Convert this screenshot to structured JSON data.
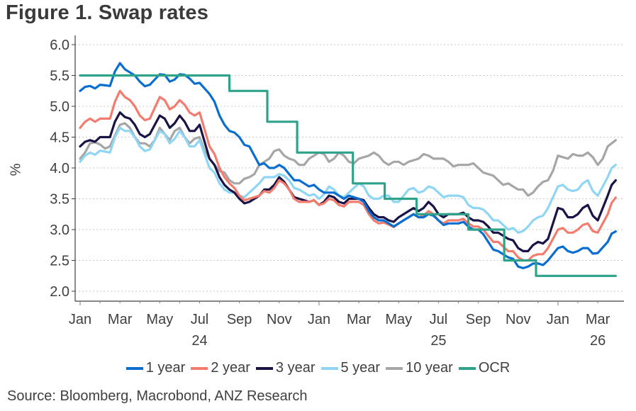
{
  "chart_data": {
    "type": "line",
    "title": "Figure 1. Swap rates",
    "xlabel": "",
    "ylabel": "%",
    "ylim": [
      2.0,
      6.0
    ],
    "yticks": [
      "6.0",
      "5.5",
      "5.0",
      "4.5",
      "4.0",
      "3.5",
      "3.0",
      "2.5",
      "2.0"
    ],
    "ytick_values": [
      6.0,
      5.5,
      5.0,
      4.5,
      4.0,
      3.5,
      3.0,
      2.5,
      2.0
    ],
    "xticks": [
      {
        "label": "Jan",
        "month": 0
      },
      {
        "label": "Mar",
        "month": 2
      },
      {
        "label": "May",
        "month": 4
      },
      {
        "label": "Jul",
        "month": 6
      },
      {
        "label": "Sep",
        "month": 8
      },
      {
        "label": "Nov",
        "month": 10
      },
      {
        "label": "Jan",
        "month": 12
      },
      {
        "label": "Mar",
        "month": 14
      },
      {
        "label": "May",
        "month": 16
      },
      {
        "label": "Jul",
        "month": 18
      },
      {
        "label": "Sep",
        "month": 20
      },
      {
        "label": "Nov",
        "month": 22
      },
      {
        "label": "Jan",
        "month": 24
      },
      {
        "label": "Mar",
        "month": 26
      }
    ],
    "year_labels": [
      {
        "label": "24",
        "month": 6
      },
      {
        "label": "25",
        "month": 18
      },
      {
        "label": "26",
        "month": 26
      }
    ],
    "x_range_months": [
      0,
      26.9
    ],
    "x_start": "Jan 2024",
    "grid": "horizontal dotted",
    "legend_position": "bottom",
    "x": [
      0,
      0.5,
      1,
      1.5,
      2,
      2.5,
      3,
      3.5,
      4,
      4.5,
      5,
      5.5,
      6,
      6.5,
      7,
      7.5,
      8,
      8.5,
      9,
      9.5,
      10,
      10.5,
      11,
      11.5,
      12,
      12.5,
      13,
      13.5,
      14,
      14.5,
      15,
      15.5,
      16,
      16.5,
      17,
      17.5,
      18,
      18.5,
      19,
      19.5,
      20,
      20.5,
      21,
      21.5,
      22,
      22.5,
      23,
      23.5,
      24,
      24.5,
      25,
      25.5,
      26,
      26.5,
      26.9
    ],
    "series": [
      {
        "name": "10 year",
        "color": "#a6a6a6",
        "values": [
          4.15,
          4.4,
          4.38,
          4.35,
          4.7,
          4.65,
          4.4,
          4.35,
          4.65,
          4.45,
          4.65,
          4.4,
          4.5,
          4.15,
          3.95,
          3.8,
          3.75,
          3.85,
          4.05,
          4.15,
          4.3,
          4.15,
          4.05,
          4.15,
          4.25,
          4.1,
          4.25,
          4.1,
          4.15,
          4.2,
          4.2,
          4.05,
          4.1,
          4.1,
          4.15,
          4.2,
          4.15,
          4.1,
          4.05,
          4.05,
          4.0,
          3.9,
          3.8,
          3.75,
          3.65,
          3.55,
          3.7,
          3.8,
          4.2,
          4.15,
          4.2,
          4.25,
          4.05,
          4.35,
          4.45
        ]
      },
      {
        "name": "5 year",
        "color": "#8fd6f4",
        "values": [
          4.1,
          4.25,
          4.28,
          4.25,
          4.65,
          4.6,
          4.35,
          4.3,
          4.6,
          4.4,
          4.6,
          4.35,
          4.45,
          4.0,
          3.75,
          3.6,
          3.55,
          3.6,
          3.75,
          3.85,
          3.9,
          3.8,
          3.65,
          3.55,
          3.5,
          3.7,
          3.55,
          3.6,
          3.75,
          3.55,
          3.5,
          3.55,
          3.45,
          3.65,
          3.6,
          3.7,
          3.6,
          3.55,
          3.55,
          3.4,
          3.35,
          3.25,
          3.15,
          3.0,
          2.95,
          3.05,
          3.2,
          3.35,
          3.7,
          3.65,
          3.65,
          3.8,
          3.55,
          3.85,
          4.05
        ]
      },
      {
        "name": "3 year",
        "color": "#1a1446",
        "values": [
          4.35,
          4.45,
          4.5,
          4.5,
          4.9,
          4.8,
          4.55,
          4.55,
          4.85,
          4.65,
          4.85,
          4.6,
          4.7,
          4.15,
          3.85,
          3.65,
          3.5,
          3.45,
          3.55,
          3.65,
          3.85,
          3.65,
          3.5,
          3.45,
          3.4,
          3.55,
          3.45,
          3.5,
          3.5,
          3.35,
          3.2,
          3.15,
          3.2,
          3.3,
          3.3,
          3.45,
          3.25,
          3.25,
          3.25,
          3.2,
          3.15,
          3.05,
          2.95,
          2.85,
          2.7,
          2.65,
          2.8,
          2.85,
          3.35,
          3.2,
          3.25,
          3.4,
          3.15,
          3.55,
          3.8
        ]
      },
      {
        "name": "2 year",
        "color": "#f47c6e",
        "values": [
          4.65,
          4.8,
          4.8,
          4.8,
          5.25,
          5.1,
          4.85,
          4.8,
          5.15,
          4.95,
          5.1,
          4.9,
          4.9,
          4.35,
          4.0,
          3.75,
          3.55,
          3.5,
          3.55,
          3.6,
          3.8,
          3.65,
          3.45,
          3.45,
          3.4,
          3.5,
          3.4,
          3.45,
          3.45,
          3.25,
          3.1,
          3.08,
          3.1,
          3.2,
          3.2,
          3.3,
          3.15,
          3.15,
          3.15,
          3.1,
          3.05,
          2.9,
          2.8,
          2.65,
          2.55,
          2.5,
          2.6,
          2.7,
          3.0,
          2.95,
          3.0,
          3.1,
          2.95,
          3.25,
          3.52
        ]
      },
      {
        "name": "1 year",
        "color": "#0a6ed1",
        "values": [
          5.25,
          5.33,
          5.35,
          5.33,
          5.7,
          5.55,
          5.4,
          5.35,
          5.52,
          5.4,
          5.52,
          5.45,
          5.38,
          5.2,
          4.85,
          4.6,
          4.5,
          4.35,
          4.05,
          4.0,
          4.05,
          3.9,
          3.8,
          3.7,
          3.65,
          3.6,
          3.55,
          3.55,
          3.5,
          3.3,
          3.15,
          3.1,
          3.1,
          3.2,
          3.2,
          3.25,
          3.15,
          3.1,
          3.1,
          3.05,
          3.0,
          2.8,
          2.65,
          2.55,
          2.4,
          2.4,
          2.45,
          2.5,
          2.7,
          2.65,
          2.65,
          2.7,
          2.62,
          2.8,
          2.97
        ]
      },
      {
        "name": "OCR",
        "color": "#2fa28a",
        "step": true,
        "steps": [
          {
            "from": 0,
            "to": 7.5,
            "value": 5.5
          },
          {
            "from": 7.5,
            "to": 9.4,
            "value": 5.25
          },
          {
            "from": 9.4,
            "to": 10.9,
            "value": 4.75
          },
          {
            "from": 10.9,
            "to": 13.7,
            "value": 4.25
          },
          {
            "from": 13.7,
            "to": 15.3,
            "value": 3.75
          },
          {
            "from": 15.3,
            "to": 16.9,
            "value": 3.5
          },
          {
            "from": 16.9,
            "to": 19.5,
            "value": 3.25
          },
          {
            "from": 19.5,
            "to": 21.3,
            "value": 3.0
          },
          {
            "from": 21.3,
            "to": 22.9,
            "value": 2.5
          },
          {
            "from": 22.9,
            "to": 26.9,
            "value": 2.25
          }
        ]
      }
    ],
    "legend_order": [
      "1 year",
      "2 year",
      "3 year",
      "5 year",
      "10 year",
      "OCR"
    ]
  },
  "legend": [
    {
      "label": "1 year",
      "color": "#0a6ed1"
    },
    {
      "label": "2 year",
      "color": "#f47c6e"
    },
    {
      "label": "3 year",
      "color": "#1a1446"
    },
    {
      "label": "5 year",
      "color": "#8fd6f4"
    },
    {
      "label": "10 year",
      "color": "#a6a6a6"
    },
    {
      "label": "OCR",
      "color": "#2fa28a"
    }
  ],
  "source": "Source: Bloomberg, Macrobond, ANZ Research"
}
